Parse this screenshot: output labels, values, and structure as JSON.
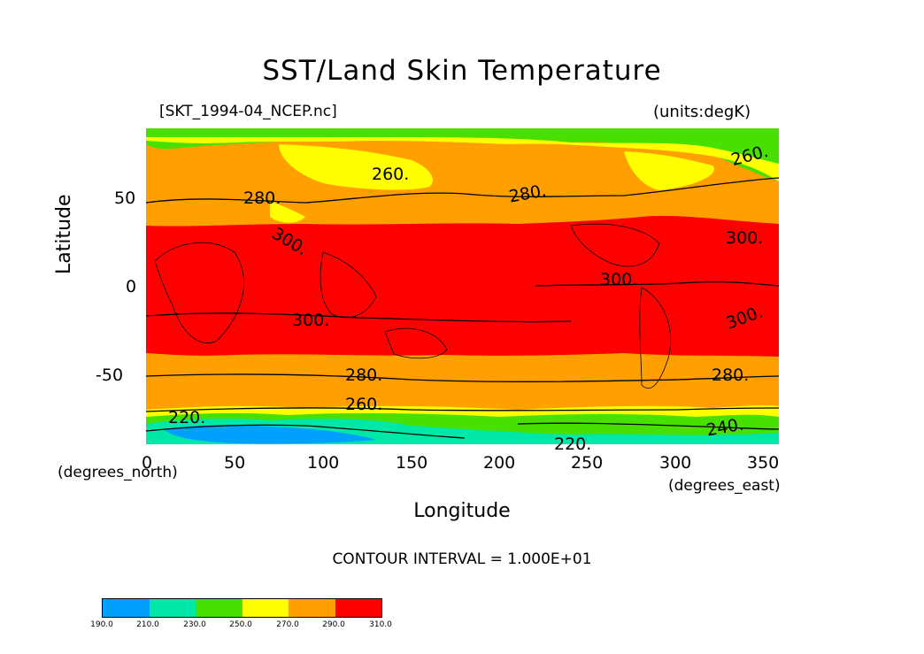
{
  "title": "SST/Land Skin Temperature",
  "file_label": "[SKT_1994-04_NCEP.nc]",
  "units_label": "(units:degK)",
  "x_axis": {
    "title": "Longitude",
    "unit": "(degrees_east)",
    "range": [
      0,
      360
    ],
    "ticks": [
      "0",
      "50",
      "100",
      "150",
      "200",
      "250",
      "300",
      "350"
    ]
  },
  "y_axis": {
    "title": "Latitude",
    "unit": "(degrees_north)",
    "range": [
      -90,
      90
    ],
    "ticks": [
      "50",
      "0",
      "-50"
    ]
  },
  "contour_note": "CONTOUR INTERVAL = 1.000E+01",
  "contour_labels": [
    "260.",
    "280.",
    "300.",
    "280.",
    "300.",
    "300.",
    "300.",
    "300.",
    "280.",
    "280.",
    "260.",
    "260.",
    "220.",
    "240.",
    "220."
  ],
  "legend": {
    "bins": [
      {
        "color": "#00a0ff"
      },
      {
        "color": "#00e8a8"
      },
      {
        "color": "#48e000"
      },
      {
        "color": "#ffff00"
      },
      {
        "color": "#ffa000"
      },
      {
        "color": "#ff0000"
      }
    ],
    "labels": [
      "190.0",
      "210.0",
      "230.0",
      "250.0",
      "270.0",
      "290.0",
      "310.0"
    ]
  },
  "colors": {
    "band_190_210": "#00a0ff",
    "band_210_230": "#00e8a8",
    "band_230_250": "#48e000",
    "band_250_270": "#ffff00",
    "band_270_290": "#ffa000",
    "band_290_310": "#ff0000"
  }
}
